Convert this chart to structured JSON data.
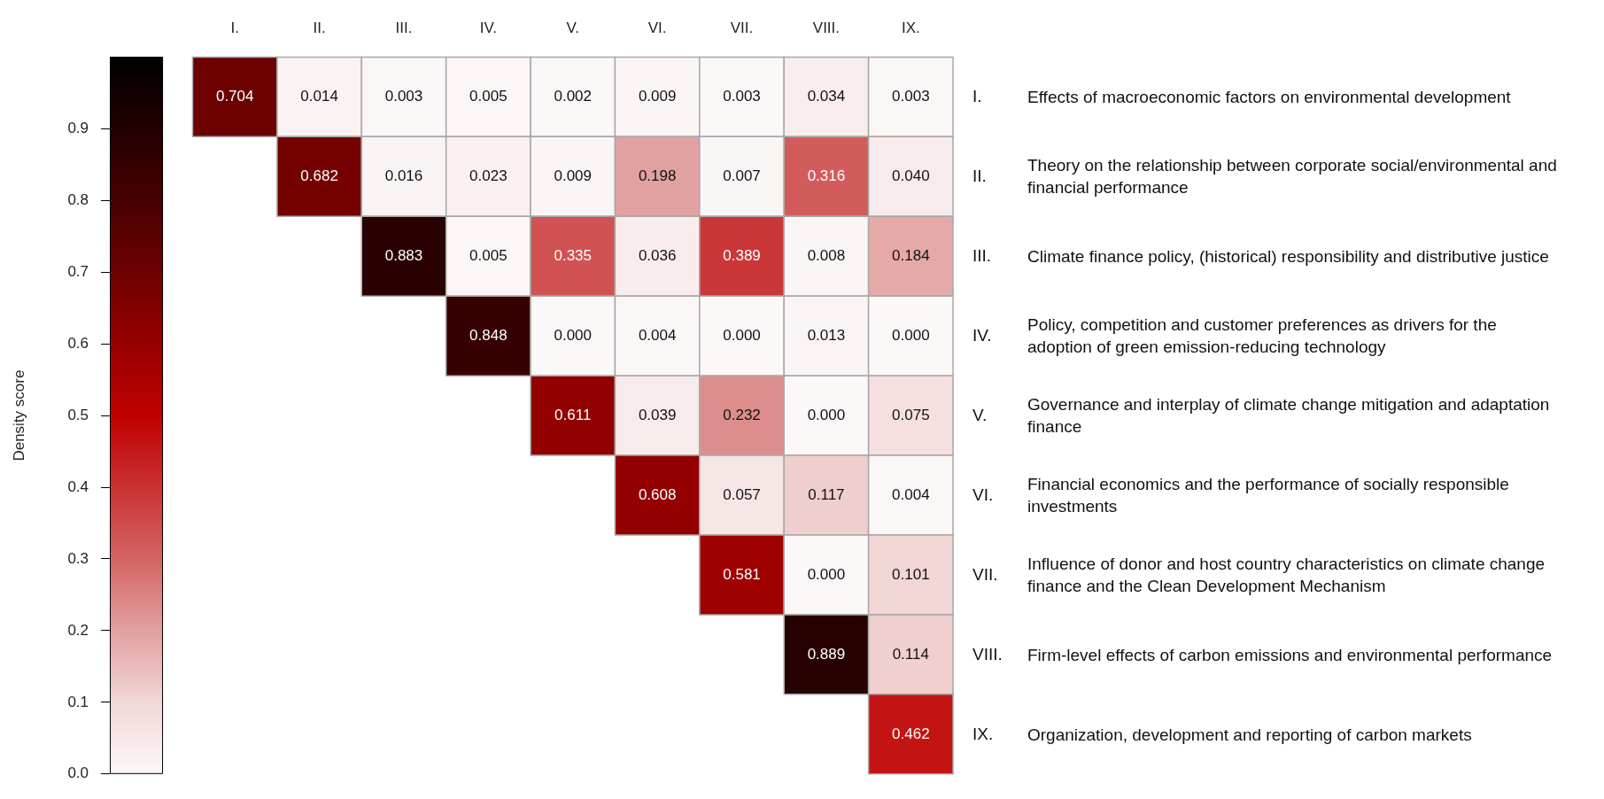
{
  "chart_data": {
    "type": "heatmap",
    "categories": [
      "I.",
      "II.",
      "III.",
      "IV.",
      "V.",
      "VI.",
      "VII.",
      "VIII.",
      "IX."
    ],
    "y_categories": [
      "I.",
      "II.",
      "III.",
      "IV.",
      "V.",
      "VI.",
      "VII.",
      "VIII.",
      "IX."
    ],
    "y2_categories": [
      "Effects of macroeconomic factors on environmental development",
      "Theory on the relationship between corporate social/environmental and financial performance",
      "Climate finance policy, (historical) responsibility and distributive justice",
      "Policy, competition and customer preferences as drivers for the adoption of green emission-reducing technology",
      "Governance and interplay of climate change mitigation and adaptation finance",
      "Financial economics and the performance of socially responsible investments",
      "Influence of donor and host country characteristics on climate change finance and the Clean Development Mechanism",
      "Firm-level effects of carbon emissions and environmental performance",
      "Organization, development and reporting of carbon markets"
    ],
    "cells": [
      [
        0.704,
        0.014,
        0.003,
        0.005,
        0.002,
        0.009,
        0.003,
        0.034,
        0.003
      ],
      [
        null,
        0.682,
        0.016,
        0.023,
        0.009,
        0.198,
        0.007,
        0.316,
        0.04
      ],
      [
        null,
        null,
        0.883,
        0.005,
        0.335,
        0.036,
        0.389,
        0.008,
        0.184
      ],
      [
        null,
        null,
        null,
        0.848,
        0.0,
        0.004,
        0.0,
        0.013,
        0.0
      ],
      [
        null,
        null,
        null,
        null,
        0.611,
        0.039,
        0.232,
        0.0,
        0.075
      ],
      [
        null,
        null,
        null,
        null,
        null,
        0.608,
        0.057,
        0.117,
        0.004
      ],
      [
        null,
        null,
        null,
        null,
        null,
        null,
        0.581,
        0.0,
        0.101
      ],
      [
        null,
        null,
        null,
        null,
        null,
        null,
        null,
        0.889,
        0.114
      ],
      [
        null,
        null,
        null,
        null,
        null,
        null,
        null,
        null,
        0.462
      ]
    ],
    "cell_labels": [
      [
        "0.704",
        "0.014",
        "0.003",
        "0.005",
        "0.002",
        "0.009",
        "0.003",
        "0.034",
        "0.003"
      ],
      [
        null,
        "0.682",
        "0.016",
        "0.023",
        "0.009",
        "0.198",
        "0.007",
        "0.316",
        "0.040"
      ],
      [
        null,
        null,
        "0.883",
        "0.005",
        "0.335",
        "0.036",
        "0.389",
        "0.008",
        "0.184"
      ],
      [
        null,
        null,
        null,
        "0.848",
        "0.000",
        "0.004",
        "0.000",
        "0.013",
        "0.000"
      ],
      [
        null,
        null,
        null,
        null,
        "0.611",
        "0.039",
        "0.232",
        "0.000",
        "0.075"
      ],
      [
        null,
        null,
        null,
        null,
        null,
        "0.608",
        "0.057",
        "0.117",
        "0.004"
      ],
      [
        null,
        null,
        null,
        null,
        null,
        null,
        "0.581",
        "0.000",
        "0.101"
      ],
      [
        null,
        null,
        null,
        null,
        null,
        null,
        null,
        "0.889",
        "0.114"
      ],
      [
        null,
        null,
        null,
        null,
        null,
        null,
        null,
        null,
        "0.462"
      ]
    ],
    "clabel": "Density score",
    "clim": [
      0,
      1
    ],
    "cticks": [
      {
        "value": 0,
        "label": "0.0"
      },
      {
        "value": 0.1,
        "label": "0.1"
      },
      {
        "value": 0.2,
        "label": "0.2"
      },
      {
        "value": 0.3,
        "label": "0.3"
      },
      {
        "value": 0.4,
        "label": "0.4"
      },
      {
        "value": 0.5,
        "label": "0.5"
      },
      {
        "value": 0.6,
        "label": "0.6"
      },
      {
        "value": 0.7,
        "label": "0.7"
      },
      {
        "value": 0.8,
        "label": "0.8"
      },
      {
        "value": 0.9,
        "label": "0.9"
      }
    ]
  }
}
